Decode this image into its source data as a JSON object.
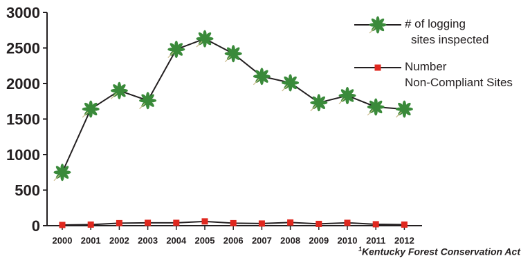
{
  "chart_data": {
    "type": "line",
    "title": "",
    "xlabel": "",
    "ylabel": "",
    "categories": [
      "2000",
      "2001",
      "2002",
      "2003",
      "2004",
      "2005",
      "2006",
      "2007",
      "2008",
      "2009",
      "2010",
      "2011",
      "2012"
    ],
    "ylim": [
      0,
      3000
    ],
    "yticks": [
      "3000",
      "2500",
      "2000",
      "1500",
      "1000",
      "500",
      "0"
    ],
    "grid": false,
    "legend_position": "top-right",
    "series": [
      {
        "name": "# of  logging sites inspected",
        "legend_lines": [
          "# of  logging",
          "sites inspected"
        ],
        "marker": "green-leaf-star",
        "line_color": "#231f20",
        "marker_color": "#3a8a3a",
        "values": [
          750,
          1640,
          1900,
          1760,
          2480,
          2630,
          2420,
          2100,
          2010,
          1730,
          1830,
          1670,
          1640
        ]
      },
      {
        "name": "Number Non-Compliant Sites",
        "legend_lines": [
          "Number",
          "Non-Compliant Sites"
        ],
        "marker": "red-square",
        "line_color": "#231f20",
        "marker_color": "#e0281f",
        "values": [
          10,
          15,
          35,
          40,
          40,
          60,
          35,
          30,
          45,
          25,
          40,
          20,
          15
        ]
      }
    ]
  },
  "footnote": {
    "superscript": "1",
    "text": "Kentucky Forest Conservation Act"
  }
}
